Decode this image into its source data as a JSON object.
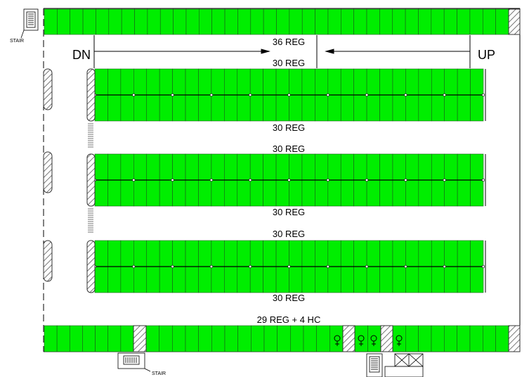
{
  "plan": {
    "direction_down": "DN",
    "direction_up": "UP",
    "stair_label": "STAIR",
    "stall_color": "#00ee00",
    "hatch_color": "#555555",
    "rows": [
      {
        "id": "north",
        "label": "36 REG",
        "stalls": 36,
        "type": "single"
      },
      {
        "id": "double-1",
        "label_top": "30 REG",
        "label_bottom": "30 REG",
        "stalls_top": 30,
        "stalls_bottom": 30,
        "type": "double"
      },
      {
        "id": "double-2",
        "label_top": "30 REG",
        "label_bottom": "30 REG",
        "stalls_top": 30,
        "stalls_bottom": 30,
        "type": "double"
      },
      {
        "id": "double-3",
        "label_top": "30 REG",
        "label_bottom": "30 REG",
        "stalls_top": 30,
        "stalls_bottom": 30,
        "type": "double"
      },
      {
        "id": "south",
        "label": "29 REG + 4 HC",
        "stalls_reg": 29,
        "stalls_hc": 4,
        "type": "single"
      }
    ],
    "accessible_icon": "accessible-parking-icon",
    "stair_icon": "stair-icon"
  }
}
